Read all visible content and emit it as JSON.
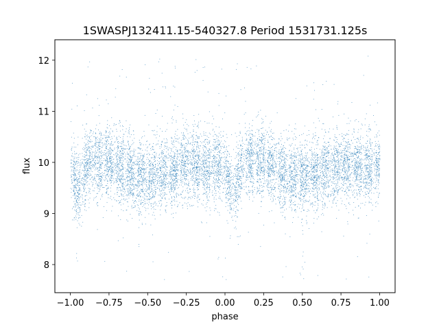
{
  "chart_data": {
    "type": "scatter",
    "title": "1SWASPJ132411.15-540327.8 Period 1531731.125s",
    "xlabel": "phase",
    "ylabel": "flux",
    "xlim": [
      -1.1,
      1.1
    ],
    "ylim": [
      7.45,
      12.4
    ],
    "xticks": [
      "−1.00",
      "−0.75",
      "−0.50",
      "−0.25",
      "0.00",
      "0.25",
      "0.50",
      "0.75",
      "1.00"
    ],
    "xtick_values": [
      -1.0,
      -0.75,
      -0.5,
      -0.25,
      0.0,
      0.25,
      0.5,
      0.75,
      1.0
    ],
    "yticks": [
      "8",
      "9",
      "10",
      "11",
      "12"
    ],
    "ytick_values": [
      8,
      9,
      10,
      11,
      12
    ],
    "grid": false,
    "marker_color": "#1f77b4",
    "series": [
      {
        "phase_range": [
          -1.0,
          1.0
        ],
        "mean_flux": 9.9,
        "flux_spread": 0.35,
        "n_points": 9000,
        "outlier_range": [
          7.7,
          12.1
        ],
        "dips": [
          {
            "phase": -0.95,
            "flux_min": 8.6
          },
          {
            "phase": 0.05,
            "flux_min": 8.6
          }
        ]
      }
    ]
  }
}
